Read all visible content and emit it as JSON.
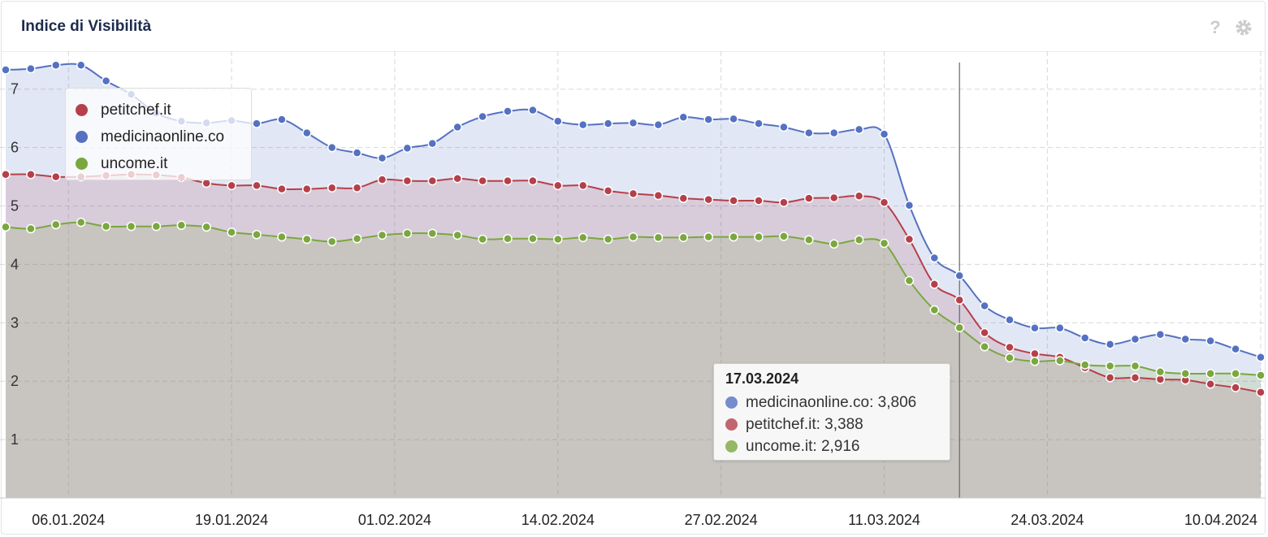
{
  "chart_data": {
    "type": "area",
    "title": "Indice di Visibilità",
    "x": [
      "01.01.2024",
      "03.01.2024",
      "05.01.2024",
      "07.01.2024",
      "09.01.2024",
      "11.01.2024",
      "13.01.2024",
      "15.01.2024",
      "17.01.2024",
      "19.01.2024",
      "21.01.2024",
      "23.01.2024",
      "25.01.2024",
      "27.01.2024",
      "29.01.2024",
      "31.01.2024",
      "02.02.2024",
      "04.02.2024",
      "06.02.2024",
      "08.02.2024",
      "10.02.2024",
      "12.02.2024",
      "14.02.2024",
      "16.02.2024",
      "18.02.2024",
      "20.02.2024",
      "22.02.2024",
      "24.02.2024",
      "26.02.2024",
      "28.02.2024",
      "01.03.2024",
      "03.03.2024",
      "05.03.2024",
      "07.03.2024",
      "09.03.2024",
      "11.03.2024",
      "13.03.2024",
      "15.03.2024",
      "17.03.2024",
      "19.03.2024",
      "21.03.2024",
      "23.03.2024",
      "25.03.2024",
      "27.03.2024",
      "29.03.2024",
      "31.03.2024",
      "02.04.2024",
      "04.04.2024",
      "06.04.2024",
      "08.04.2024",
      "10.04.2024"
    ],
    "series": [
      {
        "name": "petitchef.it",
        "color": "#b5404a",
        "values": [
          5.54,
          5.54,
          5.5,
          5.5,
          5.52,
          5.54,
          5.53,
          5.49,
          5.39,
          5.35,
          5.35,
          5.29,
          5.29,
          5.31,
          5.31,
          5.45,
          5.43,
          5.43,
          5.47,
          5.43,
          5.43,
          5.43,
          5.35,
          5.35,
          5.26,
          5.21,
          5.18,
          5.13,
          5.11,
          5.09,
          5.09,
          5.06,
          5.13,
          5.14,
          5.17,
          5.06,
          4.43,
          3.66,
          3.388,
          2.83,
          2.58,
          2.47,
          2.41,
          2.23,
          2.06,
          2.06,
          2.03,
          2.02,
          1.95,
          1.89,
          1.81
        ]
      },
      {
        "name": "medicinaonline.co",
        "color": "#5471c2",
        "values": [
          7.33,
          7.35,
          7.41,
          7.41,
          7.14,
          6.91,
          6.59,
          6.45,
          6.42,
          6.46,
          6.41,
          6.48,
          6.25,
          6.0,
          5.91,
          5.82,
          5.99,
          6.07,
          6.35,
          6.53,
          6.62,
          6.64,
          6.45,
          6.39,
          6.41,
          6.42,
          6.39,
          6.52,
          6.48,
          6.49,
          6.41,
          6.35,
          6.25,
          6.25,
          6.31,
          6.23,
          5.01,
          4.11,
          3.806,
          3.29,
          3.05,
          2.91,
          2.91,
          2.74,
          2.63,
          2.72,
          2.8,
          2.72,
          2.69,
          2.55,
          2.41
        ]
      },
      {
        "name": "uncome.it",
        "color": "#7aa73e",
        "values": [
          4.64,
          4.61,
          4.68,
          4.72,
          4.65,
          4.65,
          4.65,
          4.67,
          4.64,
          4.55,
          4.51,
          4.47,
          4.43,
          4.39,
          4.44,
          4.5,
          4.53,
          4.53,
          4.5,
          4.43,
          4.44,
          4.44,
          4.43,
          4.46,
          4.43,
          4.47,
          4.46,
          4.46,
          4.47,
          4.47,
          4.47,
          4.48,
          4.42,
          4.35,
          4.42,
          4.36,
          3.72,
          3.22,
          2.916,
          2.59,
          2.4,
          2.34,
          2.35,
          2.28,
          2.26,
          2.26,
          2.16,
          2.13,
          2.13,
          2.13,
          2.1
        ]
      }
    ],
    "xticks": [
      "06.01.2024",
      "19.01.2024",
      "01.02.2024",
      "14.02.2024",
      "27.02.2024",
      "11.03.2024",
      "24.03.2024",
      "10.04.2024"
    ],
    "ylim": [
      0,
      7.65
    ],
    "yticks": [
      1,
      2,
      3,
      4,
      5,
      6,
      7
    ],
    "grid": true,
    "tooltip": {
      "x": "17.03.2024",
      "items": [
        {
          "name": "medicinaonline.co",
          "value_label": "3,806"
        },
        {
          "name": "petitchef.it",
          "value_label": "3,388"
        },
        {
          "name": "uncome.it",
          "value_label": "2,916"
        }
      ]
    }
  }
}
